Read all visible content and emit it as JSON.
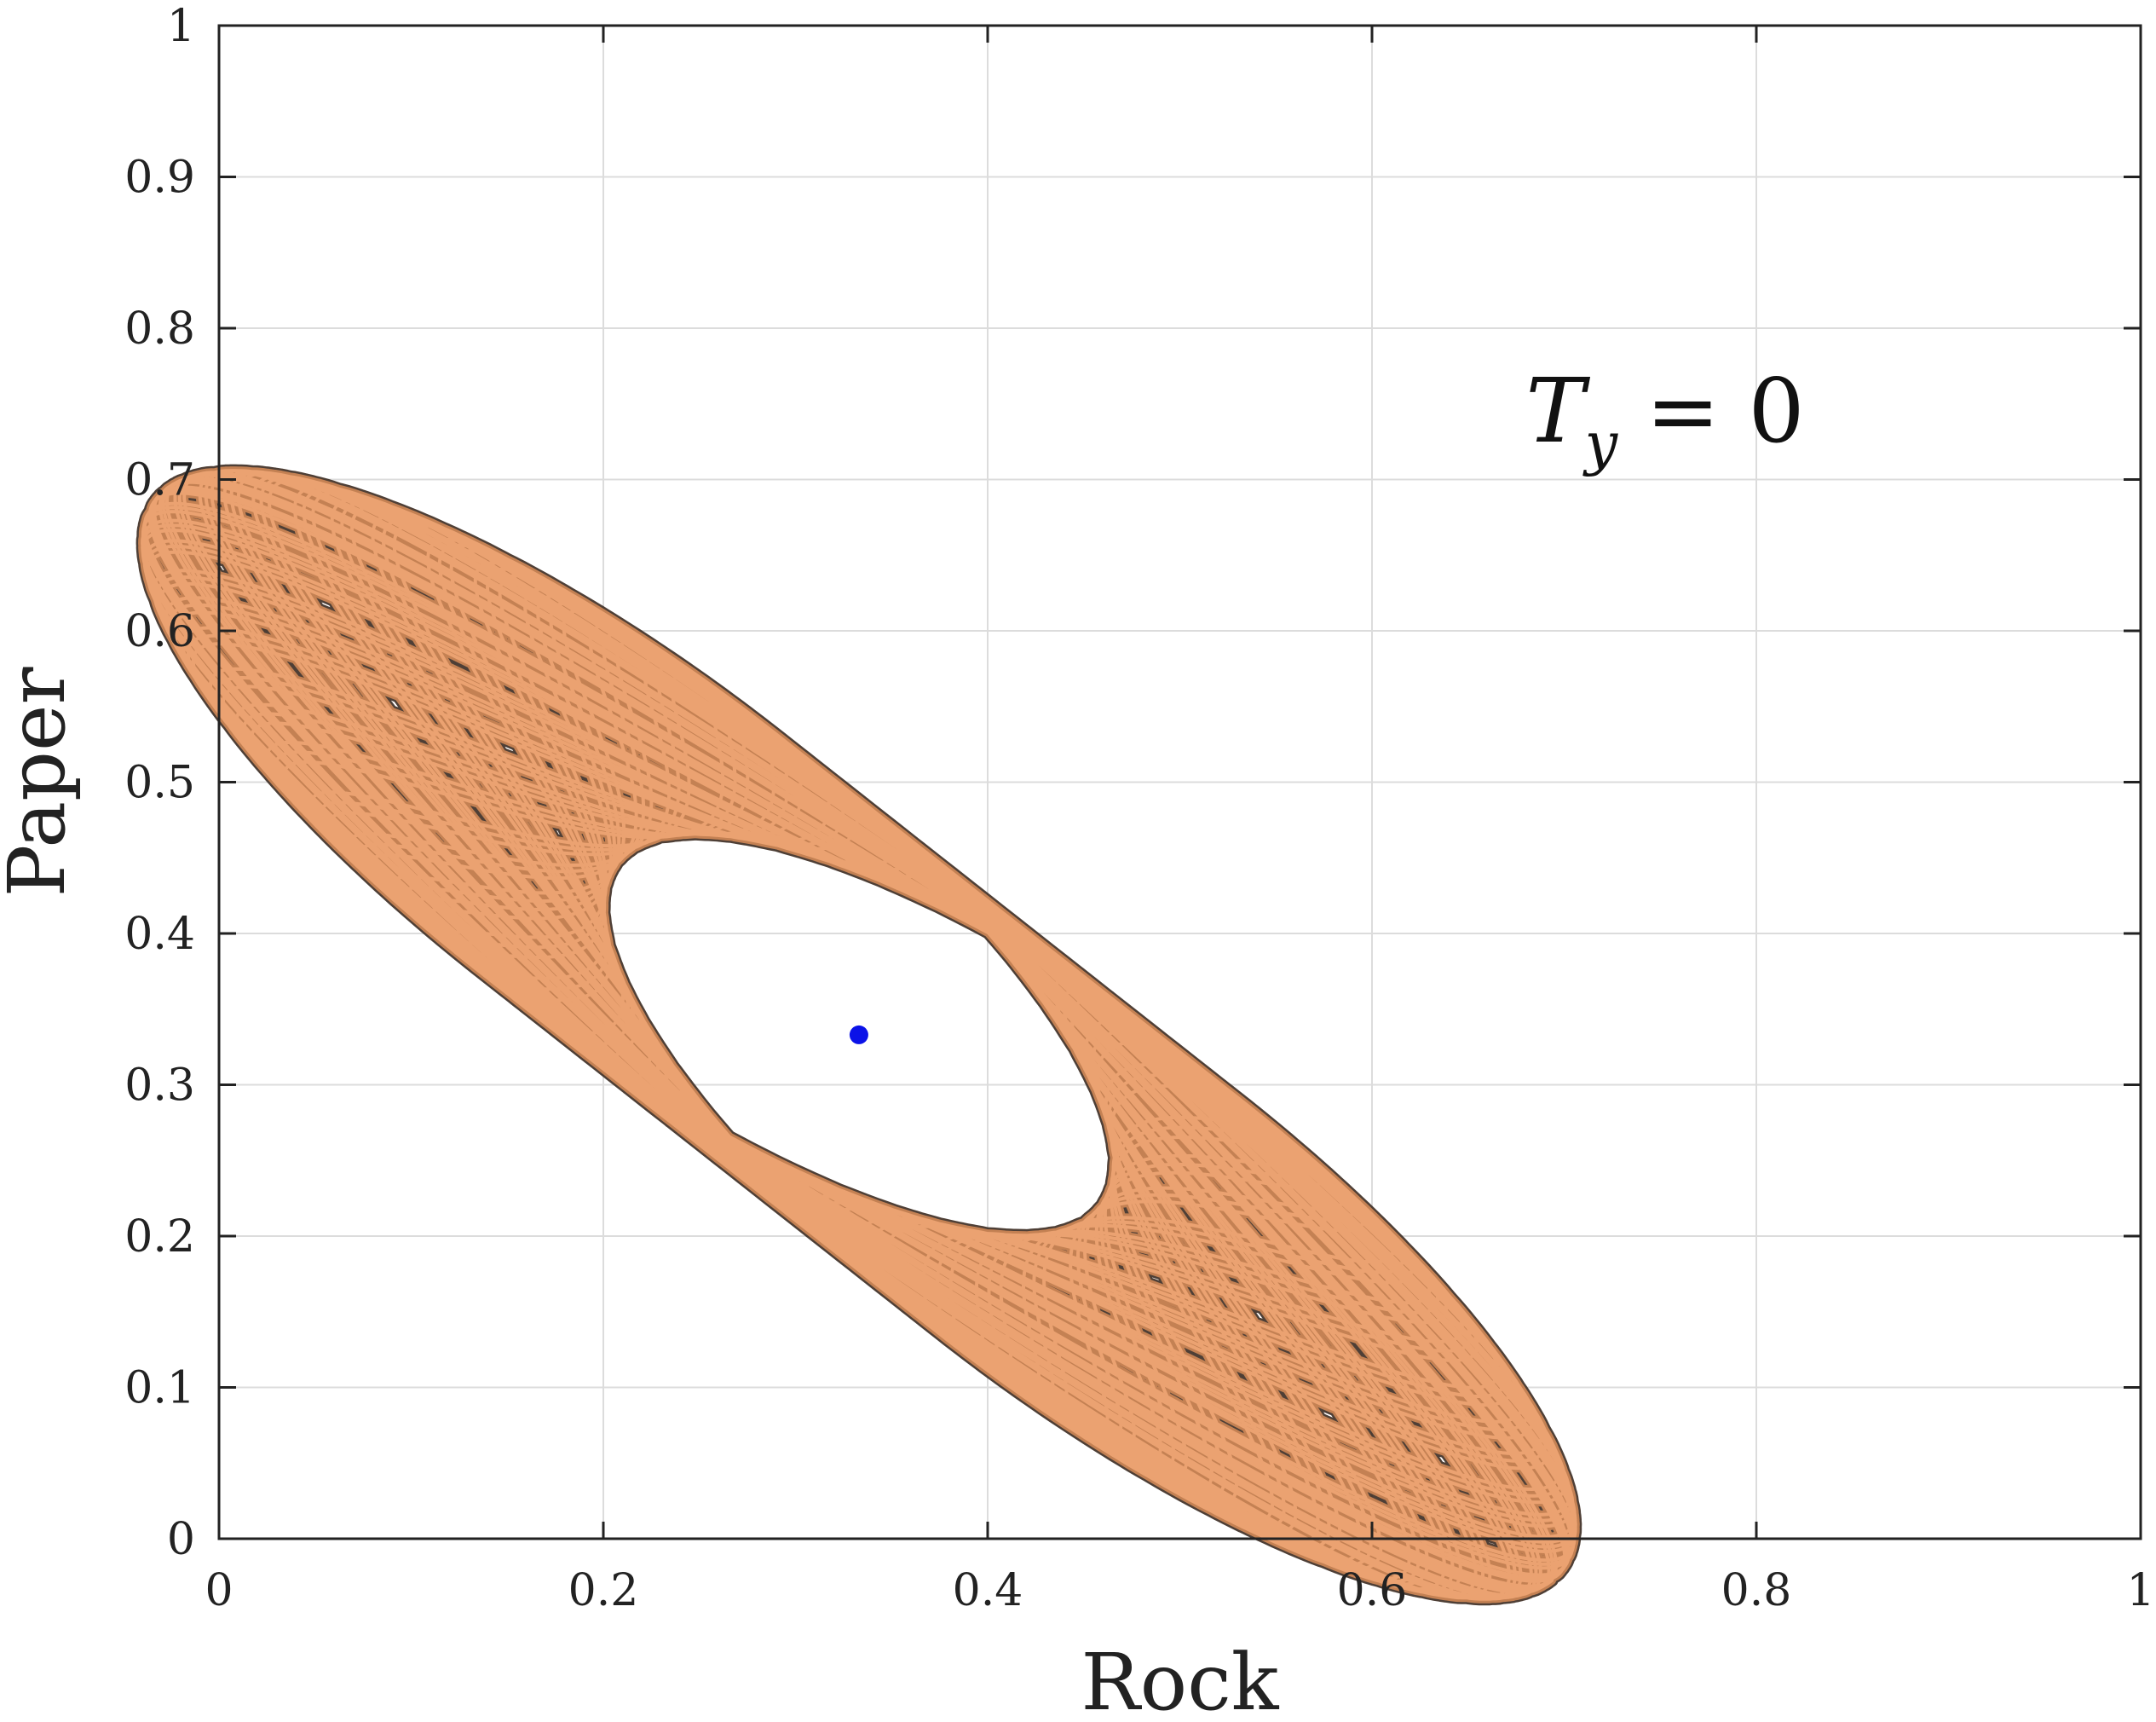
{
  "chart_data": {
    "type": "line",
    "title": "",
    "xlabel": "Rock",
    "ylabel": "Paper",
    "xlim": [
      0,
      1
    ],
    "ylim": [
      0,
      1
    ],
    "grid": true,
    "xticks": [
      "0",
      "0.2",
      "0.4",
      "0.6",
      "0.8",
      "1"
    ],
    "yticks": [
      "0",
      "0.1",
      "0.2",
      "0.3",
      "0.4",
      "0.5",
      "0.6",
      "0.7",
      "0.8",
      "0.9",
      "1"
    ],
    "annotation": {
      "base": "T",
      "subscript": "y",
      "rest": " = 0"
    },
    "series": [
      {
        "kind": "trajectory",
        "colors": {
          "light": "#f2a877",
          "mid": "#d28856",
          "dark": "#3b2a20"
        },
        "center": [
          0.333,
          0.333
        ],
        "x_range": [
          0.08,
          0.665
        ],
        "y_range": [
          0.075,
          0.665
        ]
      },
      {
        "kind": "fixed-point",
        "color": "#0b12e8",
        "x": 0.333,
        "y": 0.333
      }
    ]
  }
}
